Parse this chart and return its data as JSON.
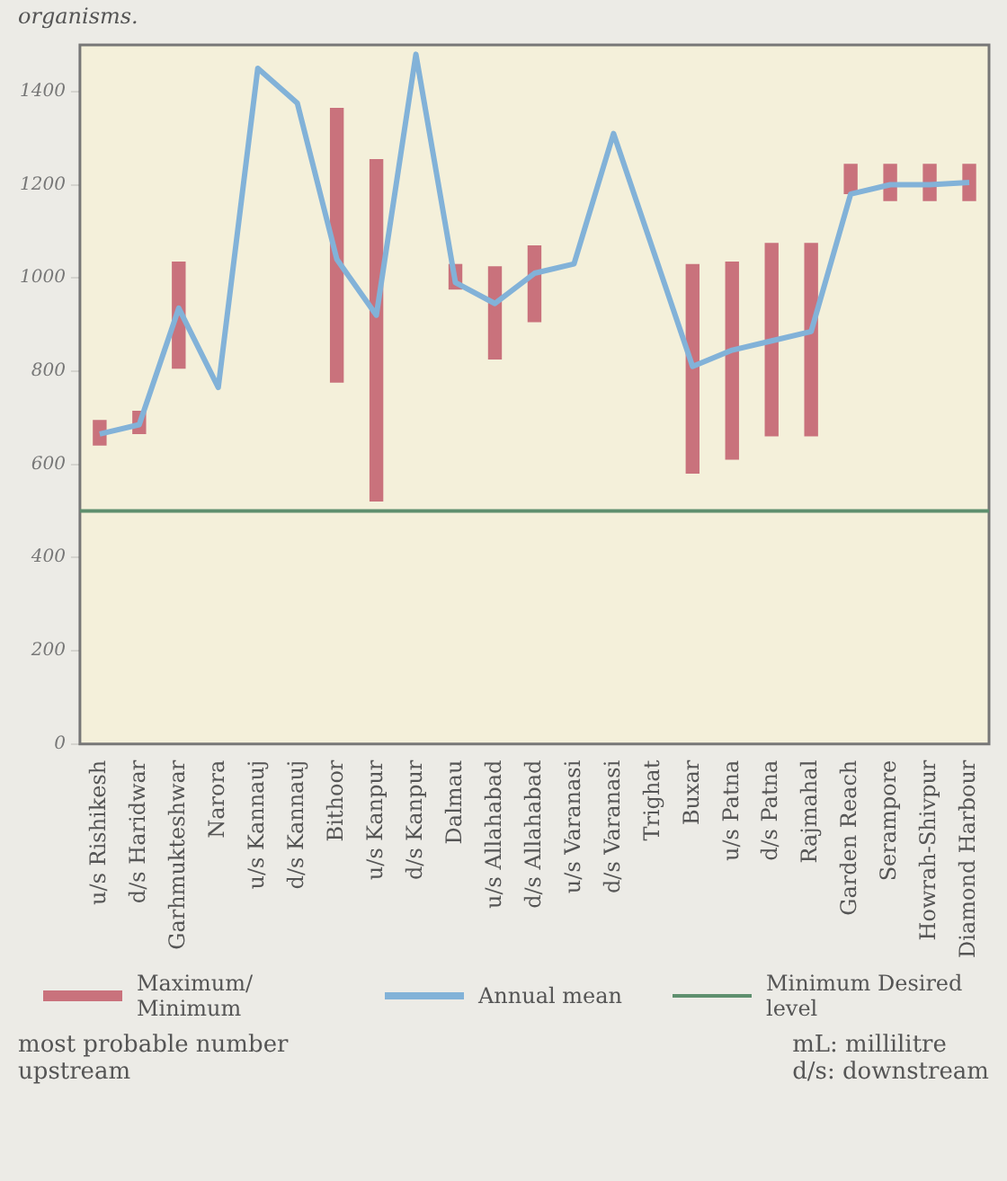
{
  "chart_data": {
    "type": "bar",
    "categories": [
      "u/s Rishikesh",
      "d/s Haridwar",
      "Garhmukteshwar",
      "Narora",
      "u/s Kannauj",
      "d/s Kannauj",
      "Bithoor",
      "u/s Kanpur",
      "d/s Kanpur",
      "Dalmau",
      "u/s Allahabad",
      "d/s Allahabad",
      "u/s Varanasi",
      "d/s Varanasi",
      "Trighat",
      "Buxar",
      "u/s Patna",
      "d/s Patna",
      "Rajmahal",
      "Garden Reach",
      "Serampore",
      "Howrah-Shivpur",
      "Diamond Harbour"
    ],
    "series": [
      {
        "name": "Maximum/ Minimum",
        "color": "#c9727c",
        "values": [
          55,
          50,
          230,
          null,
          null,
          null,
          590,
          735,
          null,
          55,
          200,
          165,
          null,
          null,
          null,
          450,
          425,
          415,
          415,
          65,
          80,
          80,
          80
        ],
        "base": [
          640,
          665,
          805,
          null,
          null,
          null,
          775,
          520,
          null,
          975,
          825,
          905,
          null,
          null,
          null,
          580,
          610,
          660,
          660,
          1180,
          1165,
          1165,
          1165
        ]
      },
      {
        "name": "Annual mean",
        "type": "line",
        "color": "#82b2d8",
        "values": [
          665,
          685,
          935,
          765,
          1450,
          1375,
          1040,
          920,
          1480,
          990,
          945,
          1010,
          1030,
          1310,
          null,
          810,
          845,
          865,
          885,
          1180,
          1200,
          1200,
          1205
        ]
      }
    ],
    "ylim": [
      0,
      1500
    ],
    "yticks": [
      0,
      200,
      400,
      600,
      800,
      1000,
      1200,
      1400
    ],
    "ref_lines": [
      {
        "axis": "y",
        "value": 500,
        "label": "Minimum Desired level",
        "color": "#5e8f6e"
      }
    ],
    "grid": false,
    "legend": "bottom",
    "annotations": [
      "organisms.",
      "most probable number",
      "upstream",
      "mL: millilitre",
      "d/s: downstream"
    ]
  }
}
